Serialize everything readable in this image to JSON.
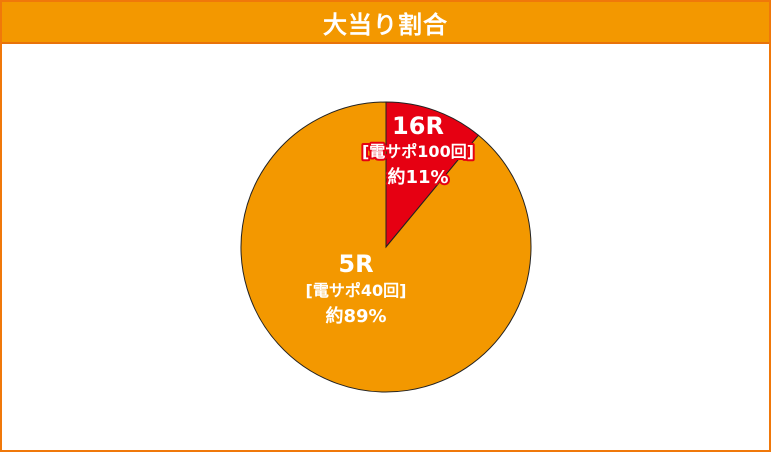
{
  "header": {
    "title": "大当り割合"
  },
  "chart_data": {
    "type": "pie",
    "title": "大当り割合",
    "start": "top",
    "direction": "clockwise",
    "slices": [
      {
        "name": "16R",
        "sub": "[電サポ100回]",
        "pct_label": "約11%",
        "value": 11,
        "color": "#e60012"
      },
      {
        "name": "5R",
        "sub": "[電サポ40回]",
        "pct_label": "約89%",
        "value": 89,
        "color": "#f39800"
      }
    ]
  }
}
